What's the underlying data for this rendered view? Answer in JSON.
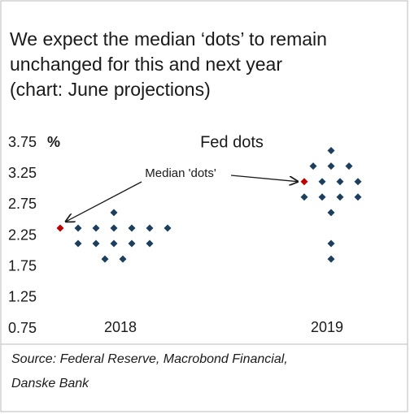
{
  "chart_data": {
    "type": "dot",
    "title_lines": [
      "We expect the median ‘dots’ to remain",
      "unchanged for this and next year",
      "(chart: June projections)"
    ],
    "chart_title": "Fed dots",
    "y_unit": "%",
    "annotation": "Median 'dots'",
    "source_lines": [
      "Source: Federal Reserve, Macrobond Financial,",
      "Danske Bank"
    ],
    "categories": [
      "2018",
      "2019"
    ],
    "values": [
      [
        2.375,
        2.375,
        2.375,
        2.375,
        2.375,
        2.375,
        2.375,
        2.625,
        2.125,
        2.125,
        2.125,
        2.125,
        2.125,
        1.875,
        1.875
      ],
      [
        3.625,
        3.375,
        3.375,
        3.375,
        3.125,
        3.125,
        3.125,
        3.125,
        2.875,
        2.875,
        2.875,
        2.875,
        2.625,
        2.125,
        1.875
      ]
    ],
    "medians": [
      2.375,
      3.125
    ],
    "color": "#1d3f5e",
    "median_color": "#c00000",
    "ylim": [
      0.75,
      3.75
    ],
    "yticks": [
      {
        "value": 0.75,
        "label": "0.75"
      },
      {
        "value": 1.25,
        "label": "1.25"
      },
      {
        "value": 1.75,
        "label": "1.75"
      },
      {
        "value": 2.25,
        "label": "2.25"
      },
      {
        "value": 2.75,
        "label": "2.75"
      },
      {
        "value": 3.25,
        "label": "3.25"
      },
      {
        "value": 3.75,
        "label": "3.75"
      }
    ]
  }
}
